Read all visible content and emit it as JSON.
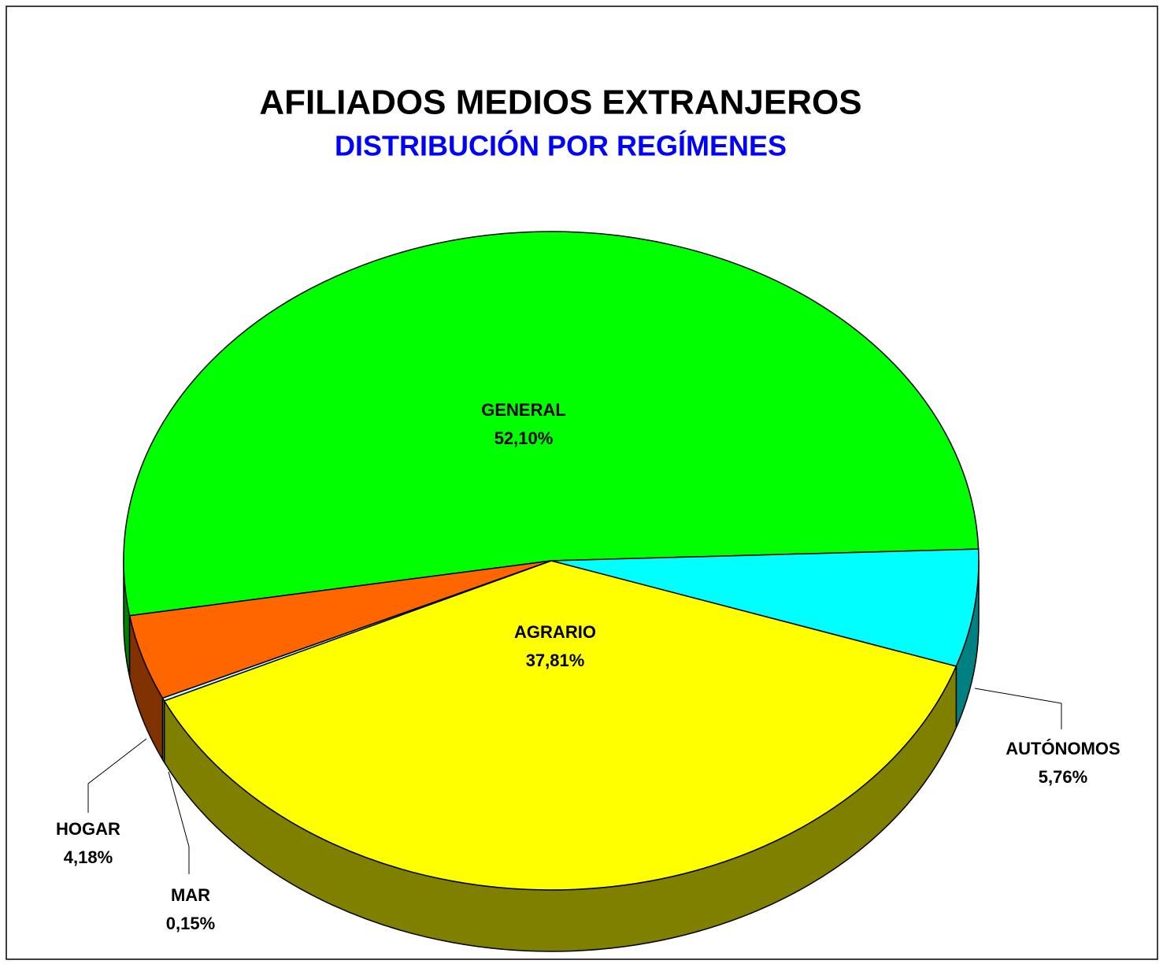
{
  "chart_data": {
    "type": "pie3d",
    "title": "AFILIADOS MEDIOS EXTRANJEROS",
    "subtitle": "DISTRIBUCIÓN POR REGÍMENES",
    "categories": [
      "GENERAL",
      "AUTÓNOMOS",
      "AGRARIO",
      "MAR",
      "HOGAR"
    ],
    "values": [
      52.1,
      5.76,
      37.81,
      0.15,
      4.18
    ],
    "value_labels": [
      "52,10%",
      "5,76%",
      "37,81%",
      "0,15%",
      "4,18%"
    ],
    "colors": [
      "#00ff00",
      "#00ffff",
      "#ffff00",
      "#ccffff",
      "#ff6600"
    ],
    "side_colors": [
      "#008000",
      "#008080",
      "#808000",
      "#80a0a0",
      "#803300"
    ]
  }
}
